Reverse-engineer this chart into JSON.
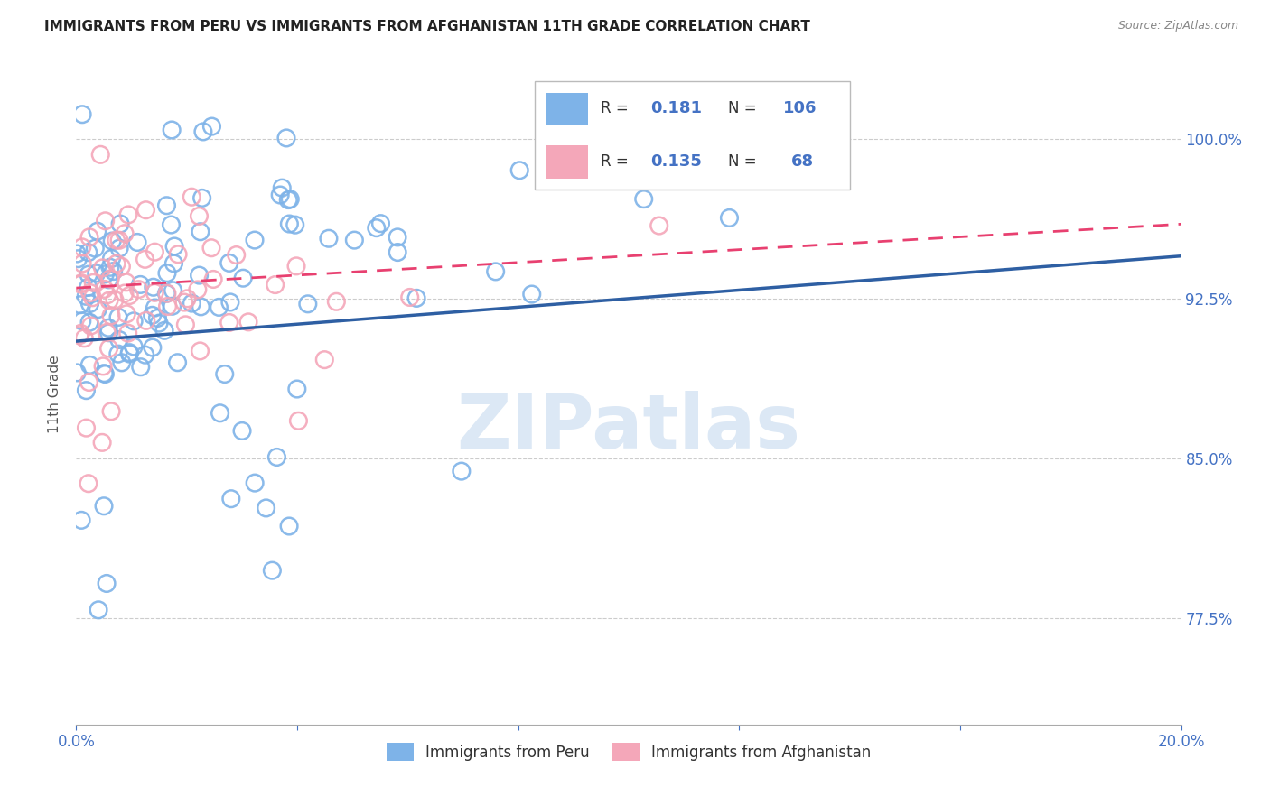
{
  "title": "IMMIGRANTS FROM PERU VS IMMIGRANTS FROM AFGHANISTAN 11TH GRADE CORRELATION CHART",
  "source": "Source: ZipAtlas.com",
  "ylabel": "11th Grade",
  "xlim": [
    0.0,
    0.2
  ],
  "ylim": [
    0.725,
    1.035
  ],
  "xtick_vals": [
    0.0,
    0.04,
    0.08,
    0.12,
    0.16,
    0.2
  ],
  "xtick_labels": [
    "0.0%",
    "",
    "",
    "",
    "",
    "20.0%"
  ],
  "ytick_vals": [
    0.775,
    0.85,
    0.925,
    1.0
  ],
  "ytick_labels": [
    "77.5%",
    "85.0%",
    "92.5%",
    "100.0%"
  ],
  "color_peru": "#7EB3E8",
  "color_afghanistan": "#F4A7B9",
  "trendline_peru_color": "#2E5FA3",
  "trendline_afghanistan_color": "#E84070",
  "peru_trendline": [
    0.905,
    0.945
  ],
  "afg_trendline": [
    0.93,
    0.96
  ],
  "watermark_color": "#DCE8F5",
  "background_color": "#ffffff",
  "grid_color": "#cccccc"
}
